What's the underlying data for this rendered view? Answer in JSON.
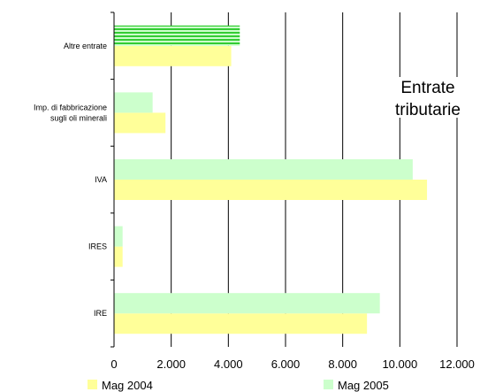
{
  "chart_data": {
    "type": "bar",
    "orientation": "horizontal",
    "title_lines": [
      "Entrate",
      "tributarie"
    ],
    "categories": [
      "Altre entrate",
      "Imp. di fabbricazione sugli oli minerali",
      "IVA",
      "IRES",
      "IRE"
    ],
    "category_label_lines": [
      [
        "Altre entrate"
      ],
      [
        "Imp. di fabbricazione",
        "sugli oli minerali"
      ],
      [
        "IVA"
      ],
      [
        "IRES"
      ],
      [
        "IRE"
      ]
    ],
    "series": [
      {
        "name": "Mag 2004",
        "values": [
          4100,
          1800,
          10950,
          300,
          8850
        ],
        "color": "#ffff99"
      },
      {
        "name": "Mag 2005",
        "values": [
          4400,
          1350,
          10450,
          300,
          9300
        ],
        "color": "#ccffcc"
      }
    ],
    "highlight": {
      "category": "Altre entrate",
      "series": "Mag 2005",
      "color": "#33cc33",
      "pattern": "horizontal-stripes"
    },
    "xlim": [
      0,
      12000
    ],
    "xticks": [
      0,
      2000,
      4000,
      6000,
      8000,
      10000,
      12000
    ],
    "xtick_labels": [
      "0",
      "2.000",
      "4.000",
      "6.000",
      "8.000",
      "10.000",
      "12.000"
    ],
    "grid": "vertical",
    "legend_position": "bottom"
  }
}
